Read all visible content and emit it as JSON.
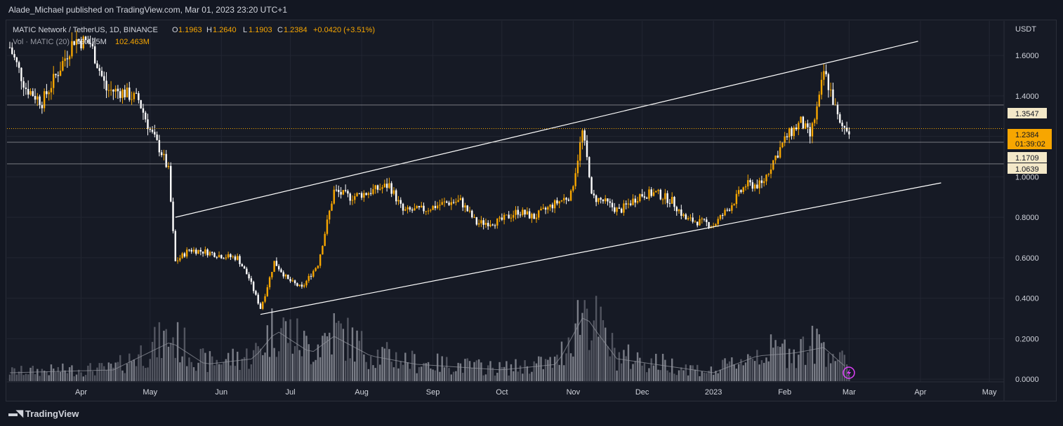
{
  "publisher_line": "Alade_Michael published on TradingView.com, Mar 01, 2023 23:20 UTC+1",
  "symbol_line": "MATIC Network / TetherUS, 1D, BINANCE",
  "ohlc": {
    "o_label": "O",
    "o": "1.1963",
    "h_label": "H",
    "h": "1.2640",
    "l_label": "L",
    "l": "1.1903",
    "c_label": "C",
    "c": "1.2384",
    "change": "+0.0420 (+3.51%)"
  },
  "volume_line": {
    "label": "Vol · MATIC (20)",
    "v1": "69.175M",
    "v2": "102.463M"
  },
  "currency": "USDT",
  "footer_brand": "TradingView",
  "icons": {
    "logo": "tradingview-logo-icon",
    "replay": "lightning-icon"
  },
  "colors": {
    "up": "#f7a600",
    "down": "#ffffff",
    "background": "#131722",
    "grid": "#2a2e39",
    "last_price": "#f7a600",
    "volume": "#787b86"
  },
  "chart_data": {
    "type": "candlestick",
    "title": "MATIC Network / TetherUS, 1D, BINANCE",
    "ylim": [
      -0.1,
      1.77
    ],
    "y_ticks": [
      "1.6000",
      "1.4000",
      "1.2000",
      "1.0000",
      "0.8000",
      "0.6000",
      "0.4000",
      "0.2000",
      "0.0000"
    ],
    "y_tick_values": [
      1.6,
      1.4,
      1.2,
      1.0,
      0.8,
      0.6,
      0.4,
      0.2,
      0.0
    ],
    "x_labels": [
      "Apr",
      "May",
      "Jun",
      "Jul",
      "Aug",
      "Sep",
      "Oct",
      "Nov",
      "Dec",
      "2023",
      "Feb",
      "Mar",
      "Apr",
      "May"
    ],
    "x_label_dates": [
      "2022-04-01",
      "2022-05-01",
      "2022-06-01",
      "2022-07-01",
      "2022-08-01",
      "2022-09-01",
      "2022-10-01",
      "2022-11-01",
      "2022-12-01",
      "2023-01-01",
      "2023-02-01",
      "2023-03-01",
      "2023-04-01",
      "2023-05-01"
    ],
    "price_series_anchors": [
      [
        "2022-03-01",
        1.64
      ],
      [
        "2022-03-08",
        1.44
      ],
      [
        "2022-03-15",
        1.37
      ],
      [
        "2022-03-22",
        1.52
      ],
      [
        "2022-03-29",
        1.68
      ],
      [
        "2022-04-05",
        1.66
      ],
      [
        "2022-04-12",
        1.43
      ],
      [
        "2022-04-19",
        1.42
      ],
      [
        "2022-04-26",
        1.38
      ],
      [
        "2022-05-01",
        1.23
      ],
      [
        "2022-05-06",
        1.12
      ],
      [
        "2022-05-09",
        1.03
      ],
      [
        "2022-05-11",
        0.72
      ],
      [
        "2022-05-12",
        0.58
      ],
      [
        "2022-05-18",
        0.64
      ],
      [
        "2022-05-25",
        0.63
      ],
      [
        "2022-06-01",
        0.61
      ],
      [
        "2022-06-08",
        0.6
      ],
      [
        "2022-06-13",
        0.5
      ],
      [
        "2022-06-18",
        0.35
      ],
      [
        "2022-06-20",
        0.42
      ],
      [
        "2022-06-24",
        0.58
      ],
      [
        "2022-06-30",
        0.49
      ],
      [
        "2022-07-06",
        0.45
      ],
      [
        "2022-07-13",
        0.57
      ],
      [
        "2022-07-20",
        0.93
      ],
      [
        "2022-07-27",
        0.9
      ],
      [
        "2022-08-03",
        0.92
      ],
      [
        "2022-08-13",
        0.96
      ],
      [
        "2022-08-19",
        0.83
      ],
      [
        "2022-08-29",
        0.84
      ],
      [
        "2022-09-06",
        0.87
      ],
      [
        "2022-09-13",
        0.88
      ],
      [
        "2022-09-20",
        0.77
      ],
      [
        "2022-09-30",
        0.78
      ],
      [
        "2022-10-08",
        0.83
      ],
      [
        "2022-10-15",
        0.8
      ],
      [
        "2022-10-23",
        0.86
      ],
      [
        "2022-10-31",
        0.91
      ],
      [
        "2022-11-05",
        1.22
      ],
      [
        "2022-11-08",
        1.02
      ],
      [
        "2022-11-09",
        0.9
      ],
      [
        "2022-11-14",
        0.88
      ],
      [
        "2022-11-21",
        0.83
      ],
      [
        "2022-11-30",
        0.91
      ],
      [
        "2022-12-07",
        0.92
      ],
      [
        "2022-12-14",
        0.88
      ],
      [
        "2022-12-20",
        0.79
      ],
      [
        "2022-12-29",
        0.77
      ],
      [
        "2023-01-01",
        0.76
      ],
      [
        "2023-01-08",
        0.85
      ],
      [
        "2023-01-15",
        0.96
      ],
      [
        "2023-01-22",
        0.96
      ],
      [
        "2023-01-27",
        1.08
      ],
      [
        "2023-02-02",
        1.2
      ],
      [
        "2023-02-08",
        1.27
      ],
      [
        "2023-02-12",
        1.2
      ],
      [
        "2023-02-16",
        1.38
      ],
      [
        "2023-02-18",
        1.52
      ],
      [
        "2023-02-21",
        1.42
      ],
      [
        "2023-02-25",
        1.25
      ],
      [
        "2023-03-01",
        1.2384
      ]
    ],
    "volume_series_anchors": [
      [
        "2022-03-01",
        0.3
      ],
      [
        "2022-04-15",
        0.4
      ],
      [
        "2022-05-10",
        1.4
      ],
      [
        "2022-05-25",
        0.6
      ],
      [
        "2022-06-15",
        0.8
      ],
      [
        "2022-06-25",
        1.8
      ],
      [
        "2022-07-10",
        1.0
      ],
      [
        "2022-07-20",
        1.6
      ],
      [
        "2022-08-05",
        0.9
      ],
      [
        "2022-08-25",
        0.6
      ],
      [
        "2022-10-01",
        0.4
      ],
      [
        "2022-10-25",
        0.6
      ],
      [
        "2022-11-06",
        2.4
      ],
      [
        "2022-11-09",
        2.0
      ],
      [
        "2022-11-20",
        0.8
      ],
      [
        "2022-12-15",
        0.5
      ],
      [
        "2023-01-01",
        0.3
      ],
      [
        "2023-01-20",
        0.9
      ],
      [
        "2023-02-05",
        1.0
      ],
      [
        "2023-02-18",
        1.2
      ],
      [
        "2023-03-01",
        0.4
      ]
    ],
    "channel_lines": [
      {
        "name": "upper",
        "start": [
          "2022-05-12",
          0.8
        ],
        "end": [
          "2023-03-31",
          1.67
        ]
      },
      {
        "name": "lower",
        "start": [
          "2022-06-18",
          0.32
        ],
        "end": [
          "2023-04-10",
          0.97
        ]
      }
    ],
    "horizontal_levels": [
      {
        "value": 1.3547,
        "label": "1.3547"
      },
      {
        "value": 1.1709,
        "label": "1.1709"
      },
      {
        "value": 1.0639,
        "label": "1.0639"
      }
    ],
    "last_price": {
      "value": 1.2384,
      "label": "1.2384",
      "countdown": "01:39:02"
    },
    "grid": true
  }
}
